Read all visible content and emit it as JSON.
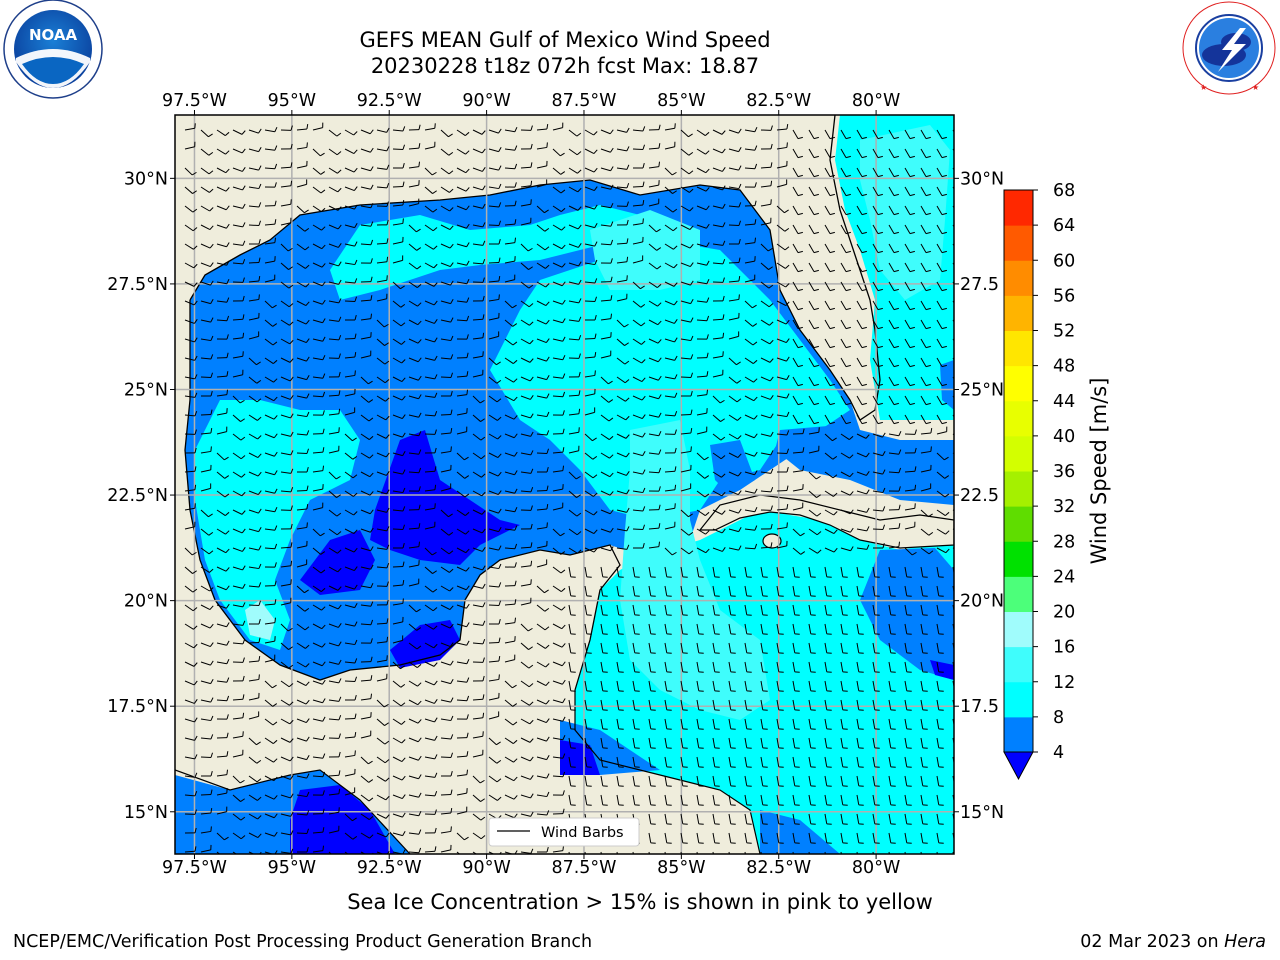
{
  "header": {
    "title_line1": "GEFS MEAN Gulf of Mexico Wind Speed",
    "title_line2": "20230228 t18z 072h fcst   Max: 18.87"
  },
  "logos": {
    "left": {
      "name": "noaa-logo",
      "text": "NOAA",
      "ring_text": "NATIONAL OCEANIC AND ATMOSPHERIC ADMINISTRATION · U.S. DEPARTMENT OF COMMERCE ·"
    },
    "right": {
      "name": "nws-logo",
      "ring_text": "NATIONAL WEATHER SERVICE"
    }
  },
  "map": {
    "lon_labels": [
      "97.5°W",
      "95°W",
      "92.5°W",
      "90°W",
      "87.5°W",
      "85°W",
      "82.5°W",
      "80°W"
    ],
    "lon_values": [
      -97.5,
      -95,
      -92.5,
      -90,
      -87.5,
      -85,
      -82.5,
      -80
    ],
    "lat_labels_left": [
      "30°N",
      "27.5°N",
      "25°N",
      "22.5°N",
      "20°N",
      "17.5°N",
      "15°N"
    ],
    "lat_labels_right": [
      "30°N",
      "27.5",
      "25°N",
      "22.5",
      "20°N",
      "17.5",
      "15°N"
    ],
    "lat_values": [
      30,
      27.5,
      25,
      22.5,
      20,
      17.5,
      15
    ],
    "lon_range": [
      -98,
      -78
    ],
    "lat_range": [
      14,
      31.5
    ],
    "legend_label": "Wind Barbs",
    "colors": {
      "land": "#efeddc",
      "grid": "#b0b0b0"
    }
  },
  "colorbar": {
    "label": "Wind Speed [m/s]",
    "ticks": [
      "4",
      "8",
      "12",
      "16",
      "20",
      "24",
      "28",
      "32",
      "36",
      "40",
      "44",
      "48",
      "52",
      "56",
      "60",
      "64",
      "68"
    ],
    "colors": [
      "#0080ff",
      "#00ffff",
      "#3ffdfc",
      "#a0fcfc",
      "#4cff7a",
      "#00e100",
      "#5fdd00",
      "#a5f000",
      "#d3ff00",
      "#e8ff00",
      "#ffff00",
      "#ffe600",
      "#ffb400",
      "#ff8c00",
      "#ff5a00",
      "#ff2800"
    ],
    "under_color": "#0000ff"
  },
  "caption": "Sea Ice Concentration > 15% is shown in pink to yellow",
  "footer": {
    "left": "NCEP/EMC/Verification Post Processing Product Generation Branch",
    "right_prefix": "02 Mar 2023 on ",
    "right_italic": "Hera"
  }
}
